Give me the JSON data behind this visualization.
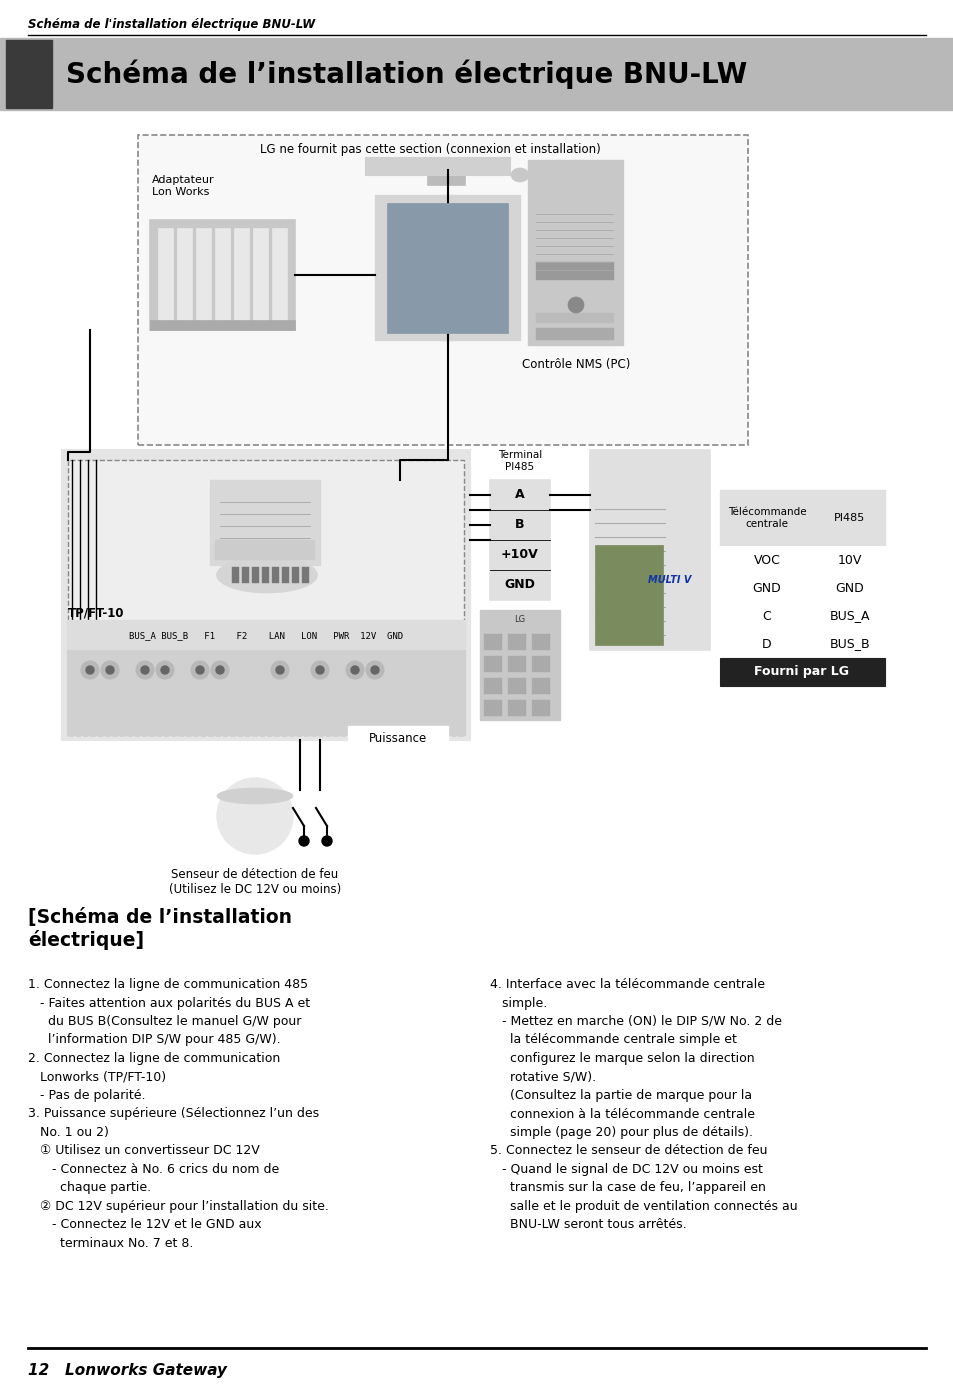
{
  "page_title_italic": "Schéma de l'installation électrique BNU-LW",
  "main_title": "Schéma de l’installation électrique BNU-LW",
  "footer_text": "12   Lonworks Gateway",
  "diagram_note": "LG ne fournit pas cette section (connexion et installation)",
  "label_adaptateur": "Adaptateur\nLon Works",
  "label_nms": "Contrôle NMS (PC)",
  "label_tpft": "TP/FT-10",
  "label_terminal": "Terminal\nPI485",
  "label_puissance": "Puissance",
  "label_sensor": "Senseur de détection de feu\n(Utilisez le DC 12V ou moins)",
  "table_header1": "Télécommande\ncentrale",
  "table_header2": "PI485",
  "table_rows": [
    [
      "VOC",
      "10V"
    ],
    [
      "GND",
      "GND"
    ],
    [
      "C",
      "BUS_A"
    ],
    [
      "D",
      "BUS_B"
    ]
  ],
  "table_footer": "Fourni par LG",
  "terminal_labels": [
    "A",
    "B",
    "+10V",
    "GND"
  ],
  "gateway_labels": "BUS_A BUS_B   F1    F2    LAN   LON   PWR  12V  GND",
  "section_title": "[Schéma de l’installation\nélectrique]",
  "body_left": [
    [
      "normal",
      "1. Connectez la ligne de communication 485"
    ],
    [
      "normal",
      "   - Faites attention aux polarités du BUS A et"
    ],
    [
      "normal",
      "     du BUS B(Consultez le manuel G/W pour"
    ],
    [
      "normal",
      "     l’information DIP S/W pour 485 G/W)."
    ],
    [
      "normal",
      "2. Connectez la ligne de communication"
    ],
    [
      "normal",
      "   Lonworks (TP/FT-10)"
    ],
    [
      "normal",
      "   - Pas de polarité."
    ],
    [
      "normal",
      "3. Puissance supérieure (Sélectionnez l’un des"
    ],
    [
      "normal",
      "   No. 1 ou 2)"
    ],
    [
      "normal",
      "   ① Utilisez un convertisseur DC 12V"
    ],
    [
      "normal",
      "      - Connectez à No. 6 crics du nom de"
    ],
    [
      "normal",
      "        chaque partie."
    ],
    [
      "normal",
      "   ② DC 12V supérieur pour l’installation du site."
    ],
    [
      "normal",
      "      - Connectez le 12V et le GND aux"
    ],
    [
      "normal",
      "        terminaux No. 7 et 8."
    ]
  ],
  "body_right": [
    [
      "normal",
      "4. Interface avec la télécommande centrale"
    ],
    [
      "normal",
      "   simple."
    ],
    [
      "normal",
      "   - Mettez en marche (ON) le DIP S/W No. 2 de"
    ],
    [
      "normal",
      "     la télécommande centrale simple et"
    ],
    [
      "normal",
      "     configurez le marque selon la direction"
    ],
    [
      "normal",
      "     rotative S/W)."
    ],
    [
      "normal",
      "     (Consultez la partie de marque pour la"
    ],
    [
      "normal",
      "     connexion à la télécommande centrale"
    ],
    [
      "normal",
      "     simple (page 20) pour plus de détails)."
    ],
    [
      "normal",
      "5. Connectez le senseur de détection de feu"
    ],
    [
      "normal",
      "   - Quand le signal de DC 12V ou moins est"
    ],
    [
      "normal",
      "     transmis sur la case de feu, l’appareil en"
    ],
    [
      "normal",
      "     salle et le produit de ventilation connectés au"
    ],
    [
      "normal",
      "     BNU-LW seront tous arrêtés."
    ]
  ]
}
